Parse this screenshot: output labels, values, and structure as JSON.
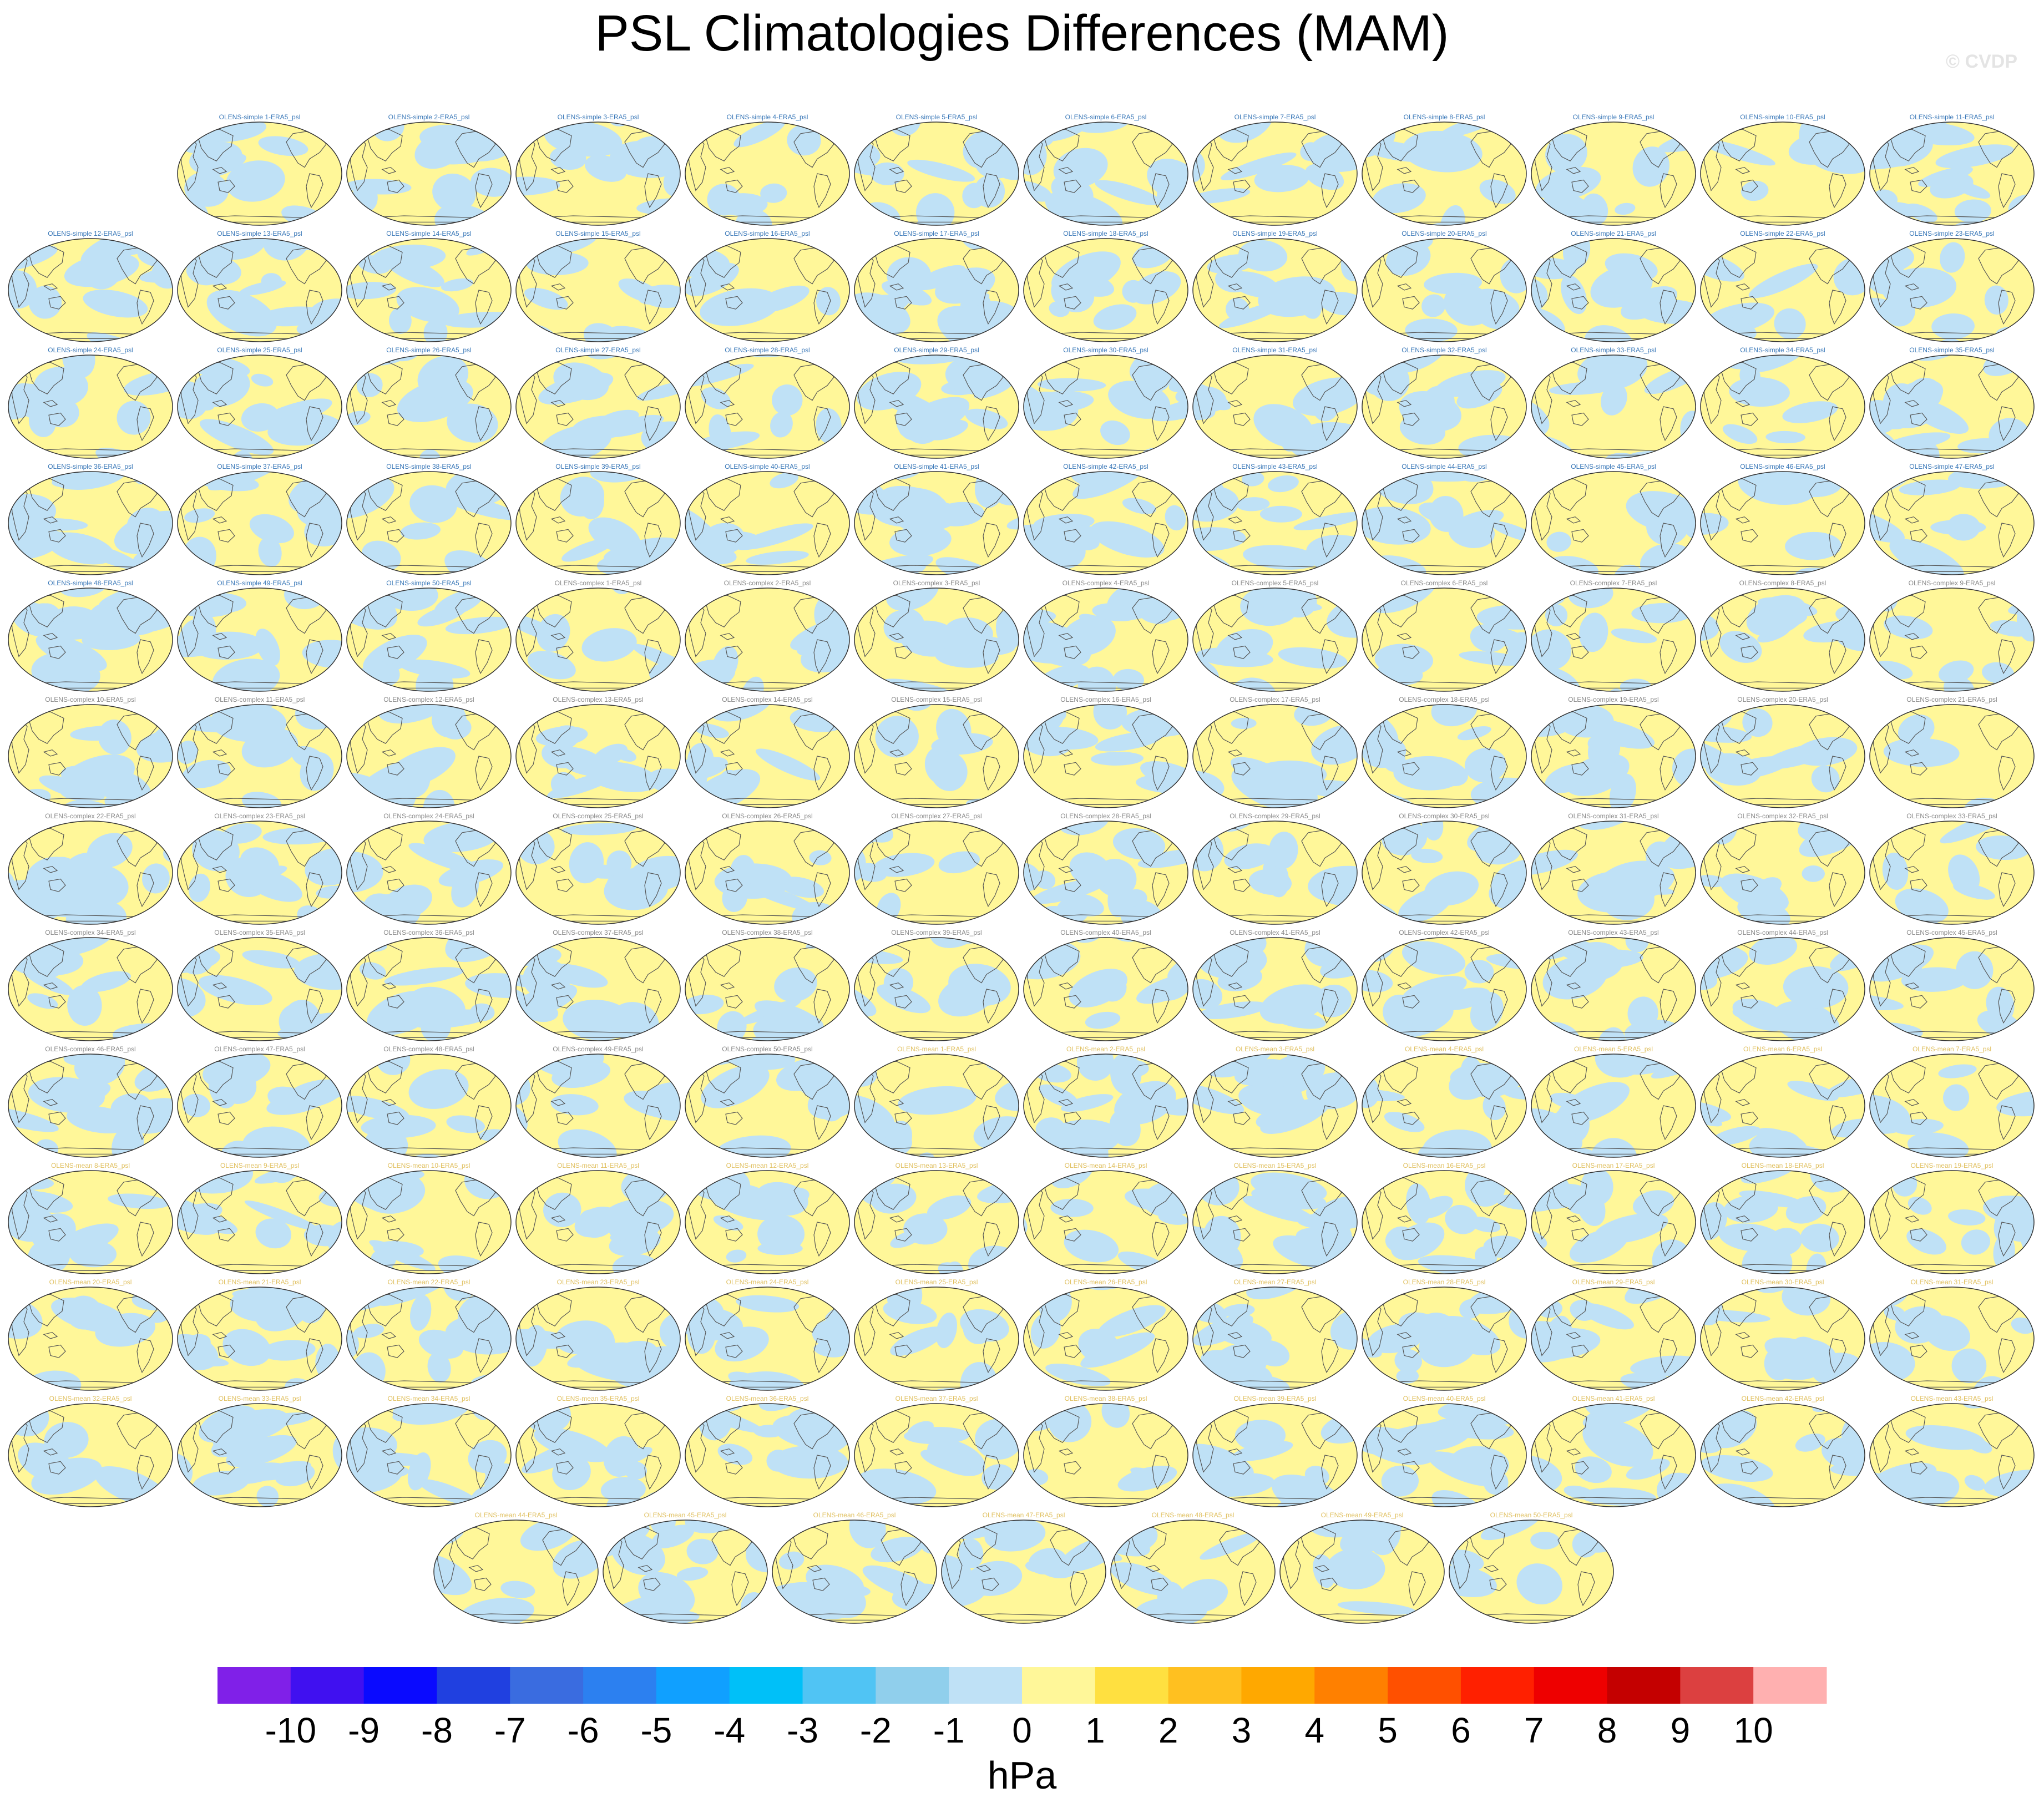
{
  "title": "PSL Climatologies Differences (MAM)",
  "watermark": "© CVDP",
  "chart_data": {
    "type": "map-panels",
    "projection": "Robinson (global)",
    "variable": "PSL difference",
    "season": "MAM",
    "units": "hPa",
    "panel_titles": [
      "OLENS-simple 1-ERA5_psl",
      "OLENS-simple 2-ERA5_psl",
      "OLENS-simple 3-ERA5_psl",
      "OLENS-simple 4-ERA5_psl",
      "OLENS-simple 5-ERA5_psl",
      "OLENS-simple 6-ERA5_psl",
      "OLENS-simple 7-ERA5_psl",
      "OLENS-simple 8-ERA5_psl",
      "OLENS-simple 9-ERA5_psl",
      "OLENS-simple 10-ERA5_psl",
      "OLENS-simple 11-ERA5_psl",
      "OLENS-simple 12-ERA5_psl",
      "OLENS-simple 13-ERA5_psl",
      "OLENS-simple 14-ERA5_psl",
      "OLENS-simple 15-ERA5_psl",
      "OLENS-simple 16-ERA5_psl",
      "OLENS-simple 17-ERA5_psl",
      "OLENS-simple 18-ERA5_psl",
      "OLENS-simple 19-ERA5_psl",
      "OLENS-simple 20-ERA5_psl",
      "OLENS-simple 21-ERA5_psl",
      "OLENS-simple 22-ERA5_psl",
      "OLENS-simple 23-ERA5_psl",
      "OLENS-simple 24-ERA5_psl",
      "OLENS-simple 25-ERA5_psl",
      "OLENS-simple 26-ERA5_psl",
      "OLENS-simple 27-ERA5_psl",
      "OLENS-simple 28-ERA5_psl",
      "OLENS-simple 29-ERA5_psl",
      "OLENS-simple 30-ERA5_psl",
      "OLENS-simple 31-ERA5_psl",
      "OLENS-simple 32-ERA5_psl",
      "OLENS-simple 33-ERA5_psl",
      "OLENS-simple 34-ERA5_psl",
      "OLENS-simple 35-ERA5_psl",
      "OLENS-simple 36-ERA5_psl",
      "OLENS-simple 37-ERA5_psl",
      "OLENS-simple 38-ERA5_psl",
      "OLENS-simple 39-ERA5_psl",
      "OLENS-simple 40-ERA5_psl",
      "OLENS-simple 41-ERA5_psl",
      "OLENS-simple 42-ERA5_psl",
      "OLENS-simple 43-ERA5_psl",
      "OLENS-simple 44-ERA5_psl",
      "OLENS-simple 45-ERA5_psl",
      "OLENS-simple 46-ERA5_psl",
      "OLENS-simple 47-ERA5_psl",
      "OLENS-simple 48-ERA5_psl",
      "OLENS-simple 49-ERA5_psl",
      "OLENS-simple 50-ERA5_psl",
      "OLENS-complex 1-ERA5_psl",
      "OLENS-complex 2-ERA5_psl",
      "OLENS-complex 3-ERA5_psl",
      "OLENS-complex 4-ERA5_psl",
      "OLENS-complex 5-ERA5_psl",
      "OLENS-complex 6-ERA5_psl",
      "OLENS-complex 7-ERA5_psl",
      "OLENS-complex 8-ERA5_psl",
      "OLENS-complex 9-ERA5_psl",
      "OLENS-complex 10-ERA5_psl",
      "OLENS-complex 11-ERA5_psl",
      "OLENS-complex 12-ERA5_psl",
      "OLENS-complex 13-ERA5_psl",
      "OLENS-complex 14-ERA5_psl",
      "OLENS-complex 15-ERA5_psl",
      "OLENS-complex 16-ERA5_psl",
      "OLENS-complex 17-ERA5_psl",
      "OLENS-complex 18-ERA5_psl",
      "OLENS-complex 19-ERA5_psl",
      "OLENS-complex 20-ERA5_psl",
      "OLENS-complex 21-ERA5_psl",
      "OLENS-complex 22-ERA5_psl",
      "OLENS-complex 23-ERA5_psl",
      "OLENS-complex 24-ERA5_psl",
      "OLENS-complex 25-ERA5_psl",
      "OLENS-complex 26-ERA5_psl",
      "OLENS-complex 27-ERA5_psl",
      "OLENS-complex 28-ERA5_psl",
      "OLENS-complex 29-ERA5_psl",
      "OLENS-complex 30-ERA5_psl",
      "OLENS-complex 31-ERA5_psl",
      "OLENS-complex 32-ERA5_psl",
      "OLENS-complex 33-ERA5_psl",
      "OLENS-complex 34-ERA5_psl",
      "OLENS-complex 35-ERA5_psl",
      "OLENS-complex 36-ERA5_psl",
      "OLENS-complex 37-ERA5_psl",
      "OLENS-complex 38-ERA5_psl",
      "OLENS-complex 39-ERA5_psl",
      "OLENS-complex 40-ERA5_psl",
      "OLENS-complex 41-ERA5_psl",
      "OLENS-complex 42-ERA5_psl",
      "OLENS-complex 43-ERA5_psl",
      "OLENS-complex 44-ERA5_psl",
      "OLENS-complex 45-ERA5_psl",
      "OLENS-complex 46-ERA5_psl",
      "OLENS-complex 47-ERA5_psl",
      "OLENS-complex 48-ERA5_psl",
      "OLENS-complex 49-ERA5_psl",
      "OLENS-complex 50-ERA5_psl",
      "OLENS-mean 1-ERA5_psl",
      "OLENS-mean 2-ERA5_psl",
      "OLENS-mean 3-ERA5_psl",
      "OLENS-mean 4-ERA5_psl",
      "OLENS-mean 5-ERA5_psl",
      "OLENS-mean 6-ERA5_psl",
      "OLENS-mean 7-ERA5_psl",
      "OLENS-mean 8-ERA5_psl",
      "OLENS-mean 9-ERA5_psl",
      "OLENS-mean 10-ERA5_psl",
      "OLENS-mean 11-ERA5_psl",
      "OLENS-mean 12-ERA5_psl",
      "OLENS-mean 13-ERA5_psl",
      "OLENS-mean 14-ERA5_psl",
      "OLENS-mean 15-ERA5_psl",
      "OLENS-mean 16-ERA5_psl",
      "OLENS-mean 17-ERA5_psl",
      "OLENS-mean 18-ERA5_psl",
      "OLENS-mean 19-ERA5_psl",
      "OLENS-mean 20-ERA5_psl",
      "OLENS-mean 21-ERA5_psl",
      "OLENS-mean 22-ERA5_psl",
      "OLENS-mean 23-ERA5_psl",
      "OLENS-mean 24-ERA5_psl",
      "OLENS-mean 25-ERA5_psl",
      "OLENS-mean 26-ERA5_psl",
      "OLENS-mean 27-ERA5_psl",
      "OLENS-mean 28-ERA5_psl",
      "OLENS-mean 29-ERA5_psl",
      "OLENS-mean 30-ERA5_psl",
      "OLENS-mean 31-ERA5_psl",
      "OLENS-mean 32-ERA5_psl",
      "OLENS-mean 33-ERA5_psl",
      "OLENS-mean 34-ERA5_psl",
      "OLENS-mean 35-ERA5_psl",
      "OLENS-mean 36-ERA5_psl",
      "OLENS-mean 37-ERA5_psl",
      "OLENS-mean 38-ERA5_psl",
      "OLENS-mean 39-ERA5_psl",
      "OLENS-mean 40-ERA5_psl",
      "OLENS-mean 41-ERA5_psl",
      "OLENS-mean 42-ERA5_psl",
      "OLENS-mean 43-ERA5_psl",
      "OLENS-mean 44-ERA5_psl",
      "OLENS-mean 45-ERA5_psl",
      "OLENS-mean 46-ERA5_psl",
      "OLENS-mean 47-ERA5_psl",
      "OLENS-mean 48-ERA5_psl",
      "OLENS-mean 49-ERA5_psl",
      "OLENS-mean 50-ERA5_psl"
    ],
    "title_colors": {
      "simple": "#3a78b8",
      "complex": "#8a8a8a",
      "mean": "#e0c060"
    },
    "field_colors": {
      "positive": "#fff799",
      "negative": "#bfe1f6",
      "coast": "#555555"
    },
    "colorbar": {
      "label": "hPa",
      "levels": [
        -10,
        -9,
        -8,
        -7,
        -6,
        -5,
        -4,
        -3,
        -2,
        -1,
        0,
        1,
        2,
        3,
        4,
        5,
        6,
        7,
        8,
        9,
        10
      ],
      "colors": [
        "#8020e8",
        "#4010f0",
        "#0a0aff",
        "#2040e0",
        "#3a6ce0",
        "#2c80f0",
        "#10a0ff",
        "#00c0f8",
        "#50c4f4",
        "#90cfec",
        "#bfe1f6",
        "#fff799",
        "#ffe040",
        "#ffc020",
        "#ffa800",
        "#ff8000",
        "#ff5000",
        "#ff2000",
        "#ee0000",
        "#c40000",
        "#dc4040",
        "#ffb0b0"
      ]
    }
  }
}
